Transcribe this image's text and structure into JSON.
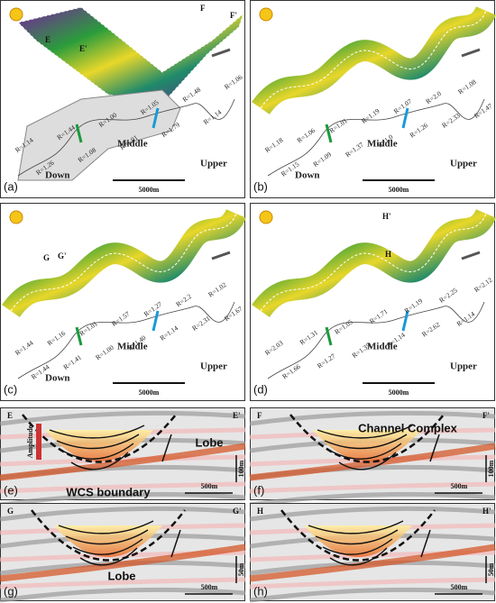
{
  "panels": [
    {
      "tag": "(a)",
      "points": [
        "E",
        "E'",
        "F",
        "F'"
      ],
      "zones": [
        "Down",
        "Middle",
        "Upper"
      ],
      "scale": "5000m",
      "radii": [
        "R=1.14",
        "R=1.26",
        "R=1.44",
        "R=1.08",
        "R=1.00",
        "R=1.01",
        "R=1.05",
        "R=1.79",
        "R=1.48",
        "R=1.14",
        "R=1.06"
      ]
    },
    {
      "tag": "(b)",
      "points": [],
      "zones": [
        "Down",
        "Middle",
        "Upper"
      ],
      "scale": "5000m",
      "radii": [
        "R=1.18",
        "R=1.15",
        "R=1.06",
        "R=1.09",
        "R=1.01",
        "R=1.37",
        "R=1.19",
        "R=1.0",
        "R=1.07",
        "R=1.26",
        "R=2.0",
        "R=2.33",
        "R=1.08",
        "R=1.47"
      ]
    },
    {
      "tag": "(c)",
      "points": [
        "G",
        "G'"
      ],
      "zones": [
        "Down",
        "Middle",
        "Upper"
      ],
      "scale": "5000m",
      "radii": [
        "R=1.44",
        "R=1.44",
        "R=1.16",
        "R=1.41",
        "R=1.01",
        "R=1.00",
        "R=1.57",
        "R=1.40",
        "R=1.27",
        "R=1.14",
        "R=2.2",
        "R=2.31",
        "R=1.02",
        "R=1.67"
      ]
    },
    {
      "tag": "(d)",
      "points": [
        "H'",
        "H"
      ],
      "zones": [
        "Middle",
        "Upper"
      ],
      "scale": "5000m",
      "radii": [
        "R=2.03",
        "R=1.66",
        "R=1.31",
        "R=1.27",
        "R=1.05",
        "R=1.35",
        "R=1.71",
        "R=1.14",
        "R=1.19",
        "R=2.62",
        "R=2.25",
        "R=1.14",
        "R=2.12"
      ]
    }
  ],
  "sections": [
    {
      "tag": "(e)",
      "ends": [
        "E",
        "E'"
      ],
      "labels": [
        "Lobe",
        "WCS boundary"
      ],
      "colorbar": "Amplitude",
      "vscale": "100m",
      "hscale": "500m"
    },
    {
      "tag": "(f)",
      "ends": [
        "F",
        "F'"
      ],
      "labels": [
        "Channel Complex"
      ],
      "vscale": "100m",
      "hscale": "500m"
    },
    {
      "tag": "(g)",
      "ends": [
        "G",
        "G'"
      ],
      "labels": [
        "Lobe"
      ],
      "vscale": "50m",
      "hscale": "500m"
    },
    {
      "tag": "(h)",
      "ends": [
        "H",
        "H'"
      ],
      "labels": [],
      "vscale": "50m",
      "hscale": "500m"
    }
  ]
}
